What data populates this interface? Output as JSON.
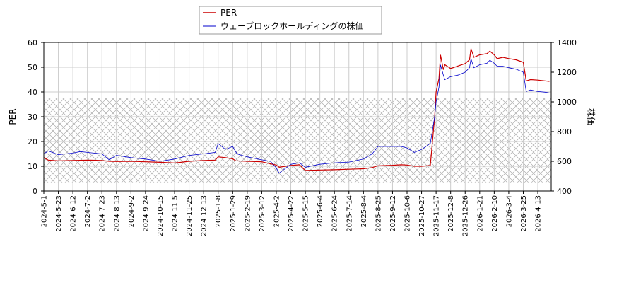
{
  "chart_data": {
    "type": "line",
    "xlabel": "",
    "ylabel_left": "PER",
    "ylabel_right": "株価",
    "ylim_left": [
      0,
      60
    ],
    "ylim_right": [
      400,
      1400
    ],
    "yticks_left": [
      0,
      10,
      20,
      30,
      40,
      50,
      60
    ],
    "yticks_right": [
      400,
      600,
      800,
      1000,
      1200,
      1400
    ],
    "grid": true,
    "legend_position": "top-center",
    "hatched_band_left": [
      3.5,
      37.5
    ],
    "x_tick_labels": [
      "2024-5-1",
      "2024-5-23",
      "2024-6-12",
      "2024-7-2",
      "2024-7-23",
      "2024-8-13",
      "2024-9-2",
      "2024-9-24",
      "2024-10-15",
      "2024-11-5",
      "2024-11-25",
      "2024-12-13",
      "2025-1-8",
      "2025-1-29",
      "2025-2-19",
      "2025-3-12",
      "2025-4-2",
      "2025-4-22",
      "2025-5-15",
      "2025-6-4",
      "2025-6-24",
      "2025-7-14",
      "2025-8-4",
      "2025-8-25",
      "2025-9-12",
      "2025-10-6",
      "2025-10-27",
      "2025-11-17",
      "2025-12-8",
      "2025-12-26",
      "2026-1-21",
      "2026-2-10",
      "2026-3-4",
      "2026-3-25",
      "2026-4-13"
    ],
    "series": [
      {
        "name": "PER",
        "axis": "left",
        "color": "#cc0000",
        "points": [
          [
            0,
            13.5
          ],
          [
            0.3,
            12.5
          ],
          [
            1,
            12.2
          ],
          [
            2,
            12.3
          ],
          [
            3,
            12.5
          ],
          [
            4,
            12.3
          ],
          [
            4.5,
            12.0
          ],
          [
            5,
            11.9
          ],
          [
            6,
            12.0
          ],
          [
            7,
            11.8
          ],
          [
            8,
            11.6
          ],
          [
            9,
            11.3
          ],
          [
            10,
            12.0
          ],
          [
            11,
            12.3
          ],
          [
            11.8,
            12.5
          ],
          [
            12,
            13.8
          ],
          [
            12.5,
            13.5
          ],
          [
            13,
            13.0
          ],
          [
            13.2,
            12.2
          ],
          [
            14,
            12.0
          ],
          [
            15,
            11.8
          ],
          [
            15.6,
            11.0
          ],
          [
            16,
            10.5
          ],
          [
            16.2,
            9.6
          ],
          [
            17,
            10.3
          ],
          [
            17.6,
            10.6
          ],
          [
            18,
            8.3
          ],
          [
            19,
            8.5
          ],
          [
            20,
            8.6
          ],
          [
            21,
            8.8
          ],
          [
            22,
            9.0
          ],
          [
            22.6,
            9.5
          ],
          [
            23,
            10.2
          ],
          [
            24,
            10.4
          ],
          [
            24.6,
            10.6
          ],
          [
            25,
            10.5
          ],
          [
            25.5,
            10.0
          ],
          [
            26,
            10.0
          ],
          [
            26.6,
            10.3
          ],
          [
            26.9,
            30.0
          ],
          [
            27,
            40.0
          ],
          [
            27.2,
            45.5
          ],
          [
            27.3,
            55.0
          ],
          [
            27.5,
            49.0
          ],
          [
            27.6,
            51.0
          ],
          [
            28,
            49.5
          ],
          [
            28.5,
            50.5
          ],
          [
            29,
            51.5
          ],
          [
            29.3,
            53.0
          ],
          [
            29.4,
            57.5
          ],
          [
            29.6,
            54.0
          ],
          [
            30,
            55.0
          ],
          [
            30.5,
            55.5
          ],
          [
            30.7,
            56.5
          ],
          [
            31,
            55.0
          ],
          [
            31.2,
            53.5
          ],
          [
            31.6,
            54.0
          ],
          [
            32,
            53.5
          ],
          [
            32.5,
            53.0
          ],
          [
            33,
            52.0
          ],
          [
            33.2,
            44.5
          ],
          [
            33.5,
            45.0
          ],
          [
            34,
            44.8
          ],
          [
            34.5,
            44.5
          ],
          [
            34.8,
            44.3
          ]
        ]
      },
      {
        "name": "ウェーブロックホールディングの株価",
        "axis": "right",
        "color": "#0000cc",
        "points": [
          [
            0,
            650
          ],
          [
            0.3,
            670
          ],
          [
            1,
            645
          ],
          [
            2,
            655
          ],
          [
            2.5,
            665
          ],
          [
            3,
            660
          ],
          [
            4,
            650
          ],
          [
            4.5,
            610
          ],
          [
            5,
            640
          ],
          [
            6,
            625
          ],
          [
            7,
            615
          ],
          [
            8,
            600
          ],
          [
            9,
            615
          ],
          [
            10,
            640
          ],
          [
            11,
            650
          ],
          [
            11.8,
            660
          ],
          [
            12,
            720
          ],
          [
            12.5,
            680
          ],
          [
            13,
            700
          ],
          [
            13.3,
            650
          ],
          [
            14,
            630
          ],
          [
            15,
            610
          ],
          [
            15.6,
            600
          ],
          [
            16,
            555
          ],
          [
            16.2,
            520
          ],
          [
            17,
            580
          ],
          [
            17.6,
            590
          ],
          [
            18,
            560
          ],
          [
            19,
            580
          ],
          [
            20,
            590
          ],
          [
            21,
            595
          ],
          [
            22,
            615
          ],
          [
            22.6,
            650
          ],
          [
            23,
            700
          ],
          [
            24,
            700
          ],
          [
            24.6,
            700
          ],
          [
            25,
            690
          ],
          [
            25.5,
            660
          ],
          [
            26,
            680
          ],
          [
            26.6,
            720
          ],
          [
            26.9,
            900
          ],
          [
            27,
            1000
          ],
          [
            27.2,
            1100
          ],
          [
            27.3,
            1250
          ],
          [
            27.5,
            1180
          ],
          [
            27.6,
            1150
          ],
          [
            28,
            1170
          ],
          [
            28.5,
            1180
          ],
          [
            29,
            1200
          ],
          [
            29.3,
            1230
          ],
          [
            29.4,
            1290
          ],
          [
            29.6,
            1230
          ],
          [
            30,
            1250
          ],
          [
            30.5,
            1260
          ],
          [
            30.7,
            1280
          ],
          [
            31,
            1260
          ],
          [
            31.2,
            1240
          ],
          [
            31.6,
            1240
          ],
          [
            32,
            1230
          ],
          [
            32.5,
            1220
          ],
          [
            33,
            1200
          ],
          [
            33.2,
            1070
          ],
          [
            33.5,
            1080
          ],
          [
            34,
            1070
          ],
          [
            34.5,
            1065
          ],
          [
            34.8,
            1060
          ]
        ]
      }
    ]
  }
}
